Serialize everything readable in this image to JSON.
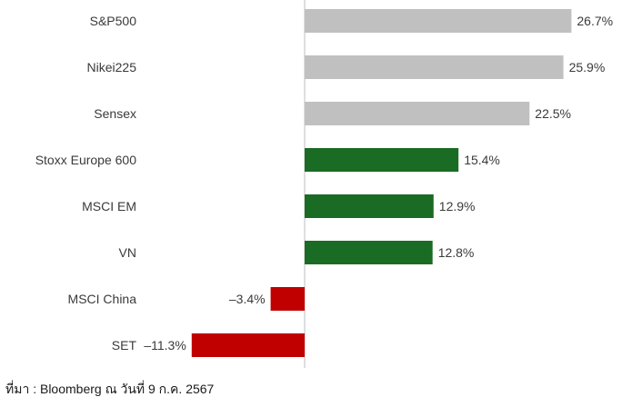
{
  "chart_data": {
    "type": "bar",
    "orientation": "horizontal",
    "categories": [
      "S&P500",
      "Nikei225",
      "Sensex",
      "Stoxx Europe 600",
      "MSCI EM",
      "VN",
      "MSCI China",
      "SET"
    ],
    "values": [
      26.7,
      25.9,
      22.5,
      15.4,
      12.9,
      12.8,
      -3.4,
      -11.3
    ],
    "value_labels": [
      "26.7%",
      "25.9%",
      "22.5%",
      "15.4%",
      "12.9%",
      "12.8%",
      "–3.4%",
      "–11.3%"
    ],
    "bar_colors": [
      "#c0c0c0",
      "#c0c0c0",
      "#c0c0c0",
      "#1a6b23",
      "#1a6b23",
      "#1a6b23",
      "#c00000",
      "#c00000"
    ],
    "xlim": [
      -12,
      28
    ],
    "grid": false,
    "legend": "none",
    "title": "",
    "xlabel": "",
    "ylabel": ""
  },
  "colors": {
    "axis_line": "#bfbfbf",
    "label_text": "#3a3a3a",
    "value_text": "#3a3a3a"
  },
  "source_note": "ที่มา : Bloomberg ณ วันที่ 9 ก.ค. 2567"
}
